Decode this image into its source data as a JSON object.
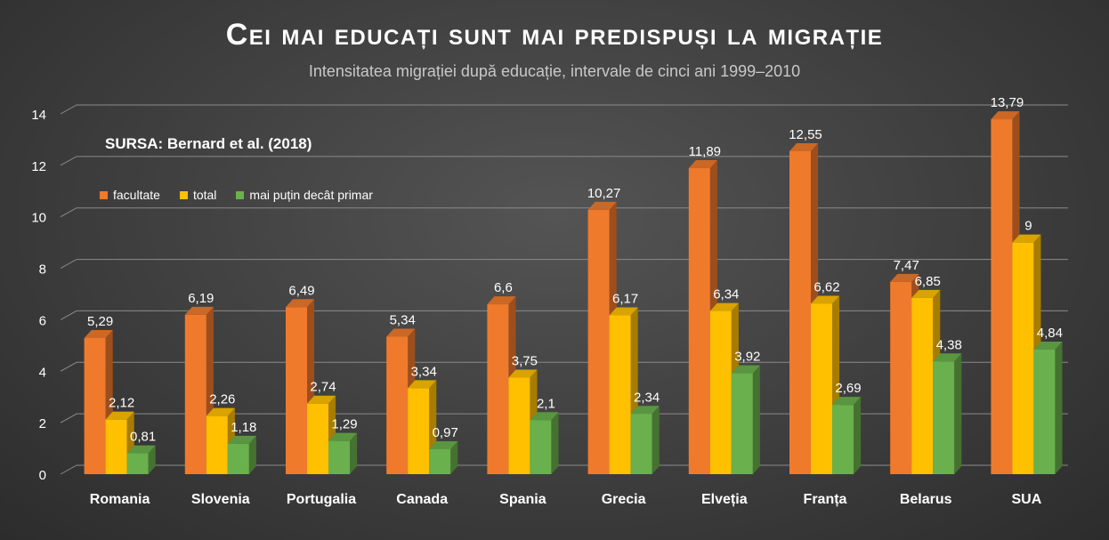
{
  "chart_data": {
    "type": "bar",
    "title": "Cei mai educați sunt mai predispuși la migrație",
    "subtitle": "Intensitatea migrației după educație, intervale de cinci ani 1999–2010",
    "source": "SURSA: Bernard et al. (2018)",
    "categories": [
      "Romania",
      "Slovenia",
      "Portugalia",
      "Canada",
      "Spania",
      "Grecia",
      "Elveția",
      "Franța",
      "Belarus",
      "SUA"
    ],
    "series": [
      {
        "name": "facultate",
        "values": [
          5.29,
          6.19,
          6.49,
          5.34,
          6.6,
          10.27,
          11.89,
          12.55,
          7.47,
          13.79
        ],
        "labels": [
          "5,29",
          "6,19",
          "6,49",
          "5,34",
          "6,6",
          "10,27",
          "11,89",
          "12,55",
          "7,47",
          "13,79"
        ],
        "color": "#f07a2c"
      },
      {
        "name": "total",
        "values": [
          2.12,
          2.26,
          2.74,
          3.34,
          3.75,
          6.17,
          6.34,
          6.62,
          6.85,
          9
        ],
        "labels": [
          "2,12",
          "2,26",
          "2,74",
          "3,34",
          "3,75",
          "6,17",
          "6,34",
          "6,62",
          "6,85",
          "9"
        ],
        "color": "#ffc000"
      },
      {
        "name": "mai puțin decât primar",
        "values": [
          0.81,
          1.18,
          1.29,
          0.97,
          2.1,
          2.34,
          3.92,
          2.69,
          4.38,
          4.84
        ],
        "labels": [
          "0,81",
          "1,18",
          "1,29",
          "0,97",
          "2,1",
          "2,34",
          "3,92",
          "2,69",
          "4,38",
          "4,84"
        ],
        "color": "#6ab04c"
      }
    ],
    "ylim": [
      0,
      14
    ],
    "yticks": [
      0,
      2,
      4,
      6,
      8,
      10,
      12,
      14
    ],
    "xlabel": "",
    "ylabel": "",
    "grid": true,
    "legend_position": "top-left"
  }
}
